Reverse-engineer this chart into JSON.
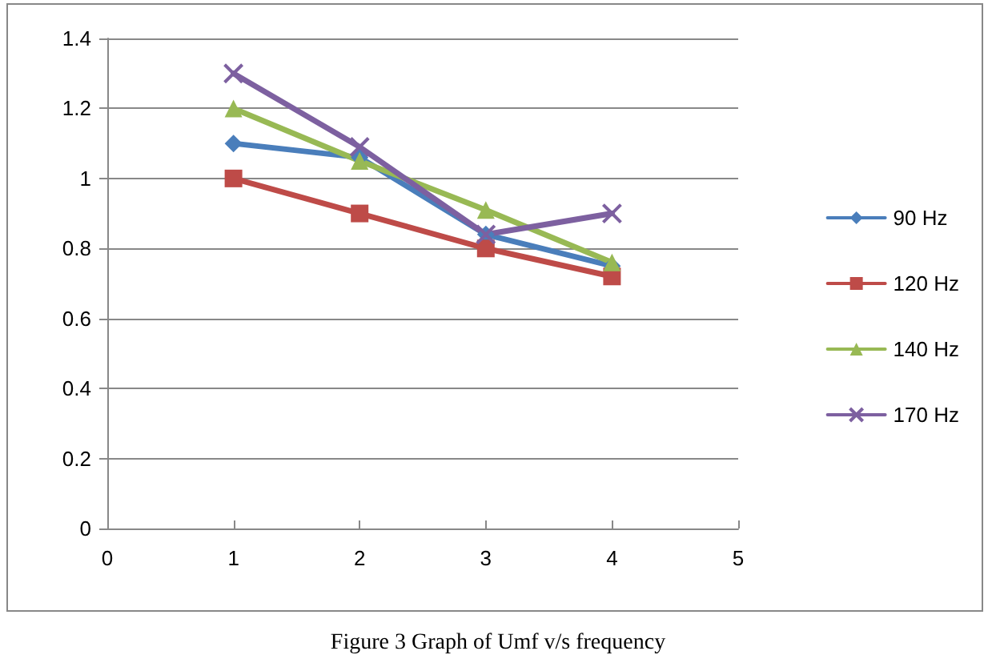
{
  "chart_data": {
    "type": "line",
    "x": [
      1,
      2,
      3,
      4
    ],
    "series": [
      {
        "name": "90 Hz",
        "color": "#4a7ebb",
        "marker": "diamond",
        "values": [
          1.1,
          1.06,
          0.84,
          0.75
        ]
      },
      {
        "name": "120 Hz",
        "color": "#be4b48",
        "marker": "square",
        "values": [
          1.0,
          0.9,
          0.8,
          0.72
        ]
      },
      {
        "name": "140 Hz",
        "color": "#98b954",
        "marker": "triangle",
        "values": [
          1.2,
          1.05,
          0.91,
          0.76
        ]
      },
      {
        "name": "170 Hz",
        "color": "#7d60a0",
        "marker": "cross",
        "values": [
          1.3,
          1.09,
          0.84,
          0.9
        ]
      }
    ],
    "xlim": [
      0,
      5
    ],
    "xticks": [
      0,
      1,
      2,
      3,
      4,
      5
    ],
    "ylim": [
      0,
      1.4
    ],
    "yticks": [
      0,
      0.2,
      0.4,
      0.6,
      0.8,
      1,
      1.2,
      1.4
    ],
    "grid": "y",
    "legend": "right",
    "annotations": [
      "Figure 3 Graph of Umf v/s frequency"
    ]
  }
}
